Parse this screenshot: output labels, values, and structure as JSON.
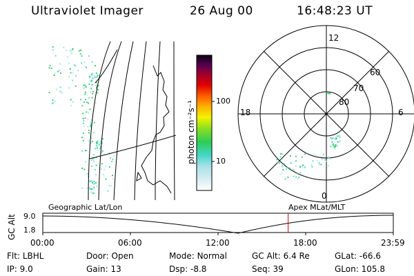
{
  "header": {
    "instrument": "Ultraviolet Imager",
    "date": "26 Aug 00",
    "time": "16:48:23 UT"
  },
  "colorbar": {
    "label": "photon cm⁻²s⁻¹",
    "ticks": [
      "100",
      "10"
    ]
  },
  "polar": {
    "mlt_labels": {
      "top": "12",
      "left": "18",
      "right": "6",
      "bottom": "0"
    },
    "lat_labels": [
      "60",
      "70",
      "80"
    ]
  },
  "timeline": {
    "y_label": "GC Alt",
    "y_ticks": [
      "9.0",
      "1.8"
    ],
    "left_caption": "Geographic Lat/Lon",
    "right_caption": "Apex MLat/MLT",
    "x_ticks": [
      "00:00",
      "06:00",
      "12:00",
      "18:00",
      "23:59"
    ],
    "marker_fraction": 0.7
  },
  "info": [
    [
      {
        "label": "Flt:",
        "value": "LBHL"
      },
      {
        "label": "Door:",
        "value": "Open"
      },
      {
        "label": "Mode:",
        "value": "Normal"
      },
      {
        "label": "GC Alt:",
        "value": "6.4 Re"
      },
      {
        "label": "GLat:",
        "value": "-66.6"
      }
    ],
    [
      {
        "label": "IP:",
        "value": "9.0"
      },
      {
        "label": "Gain:",
        "value": "13"
      },
      {
        "label": "Dsp:",
        "value": "-8.8"
      },
      {
        "label": "Seq:",
        "value": "39"
      },
      {
        "label": "GLon:",
        "value": "105.8"
      }
    ]
  ],
  "colors": {
    "marker": "#cc0000",
    "aurora_green": "#33cc66",
    "aurora_cyan": "#66ddcc"
  }
}
